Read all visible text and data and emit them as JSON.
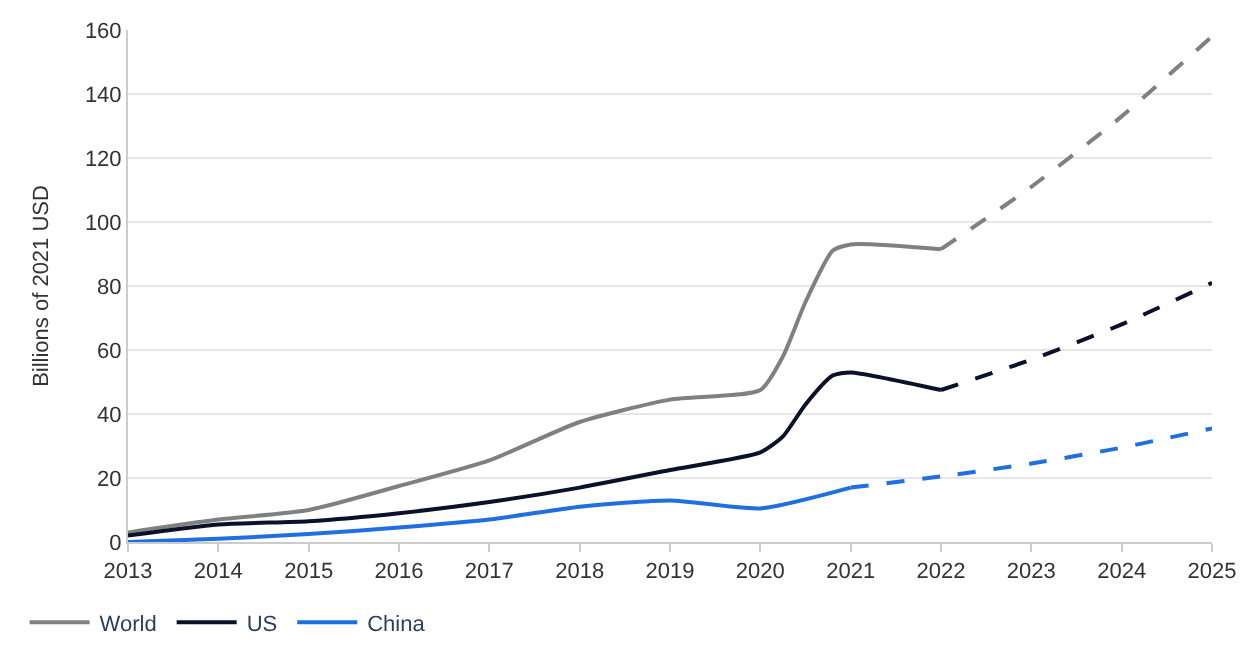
{
  "chart_data": {
    "type": "line",
    "ylabel": "Billions of 2021 USD",
    "xlim": [
      2013,
      2025
    ],
    "xticks": [
      2013,
      2014,
      2015,
      2016,
      2017,
      2018,
      2019,
      2020,
      2021,
      2022,
      2023,
      2024,
      2025
    ],
    "ylim": [
      0,
      160
    ],
    "yticks": [
      0,
      20,
      40,
      60,
      80,
      100,
      120,
      140,
      160
    ],
    "grid": "y",
    "legend": "bottom left",
    "marker": "none",
    "series": [
      {
        "name": "World",
        "color": "#808080",
        "line_style": "solid",
        "x": [
          2013,
          2014,
          2015,
          2016,
          2017,
          2018,
          2019,
          2020,
          2020.25,
          2020.5,
          2020.8,
          2021,
          2022
        ],
        "values": [
          3,
          7,
          10,
          17.5,
          25.5,
          37.5,
          44.5,
          47.5,
          58,
          75,
          91,
          93,
          91.5
        ]
      },
      {
        "color": "#808080",
        "line_style": "dashed",
        "x": [
          2022,
          2023,
          2024,
          2025
        ],
        "values": [
          91.5,
          111,
          133,
          158
        ]
      },
      {
        "name": "US",
        "color": "#0a1128",
        "line_style": "solid",
        "x": [
          2013,
          2014,
          2015,
          2016,
          2017,
          2018,
          2019,
          2020,
          2020.25,
          2020.5,
          2020.8,
          2021,
          2022
        ],
        "values": [
          2,
          5.5,
          6.5,
          9,
          12.5,
          17,
          22.5,
          28,
          33,
          43,
          52,
          53,
          47.5
        ]
      },
      {
        "color": "#0a1128",
        "line_style": "dashed",
        "x": [
          2022,
          2023,
          2024,
          2025
        ],
        "values": [
          47.5,
          57,
          68,
          81
        ]
      },
      {
        "name": "China",
        "color": "#1f6fe0",
        "line_style": "solid",
        "x": [
          2013,
          2014,
          2015,
          2016,
          2017,
          2018,
          2019,
          2020,
          2021
        ],
        "values": [
          0,
          1,
          2.5,
          4.5,
          7,
          11,
          13,
          10.5,
          17
        ]
      },
      {
        "color": "#1f6fe0",
        "line_style": "dashed",
        "x": [
          2021,
          2022,
          2023,
          2024,
          2025
        ],
        "values": [
          17,
          20.5,
          24.5,
          29.5,
          35.5
        ]
      }
    ]
  }
}
